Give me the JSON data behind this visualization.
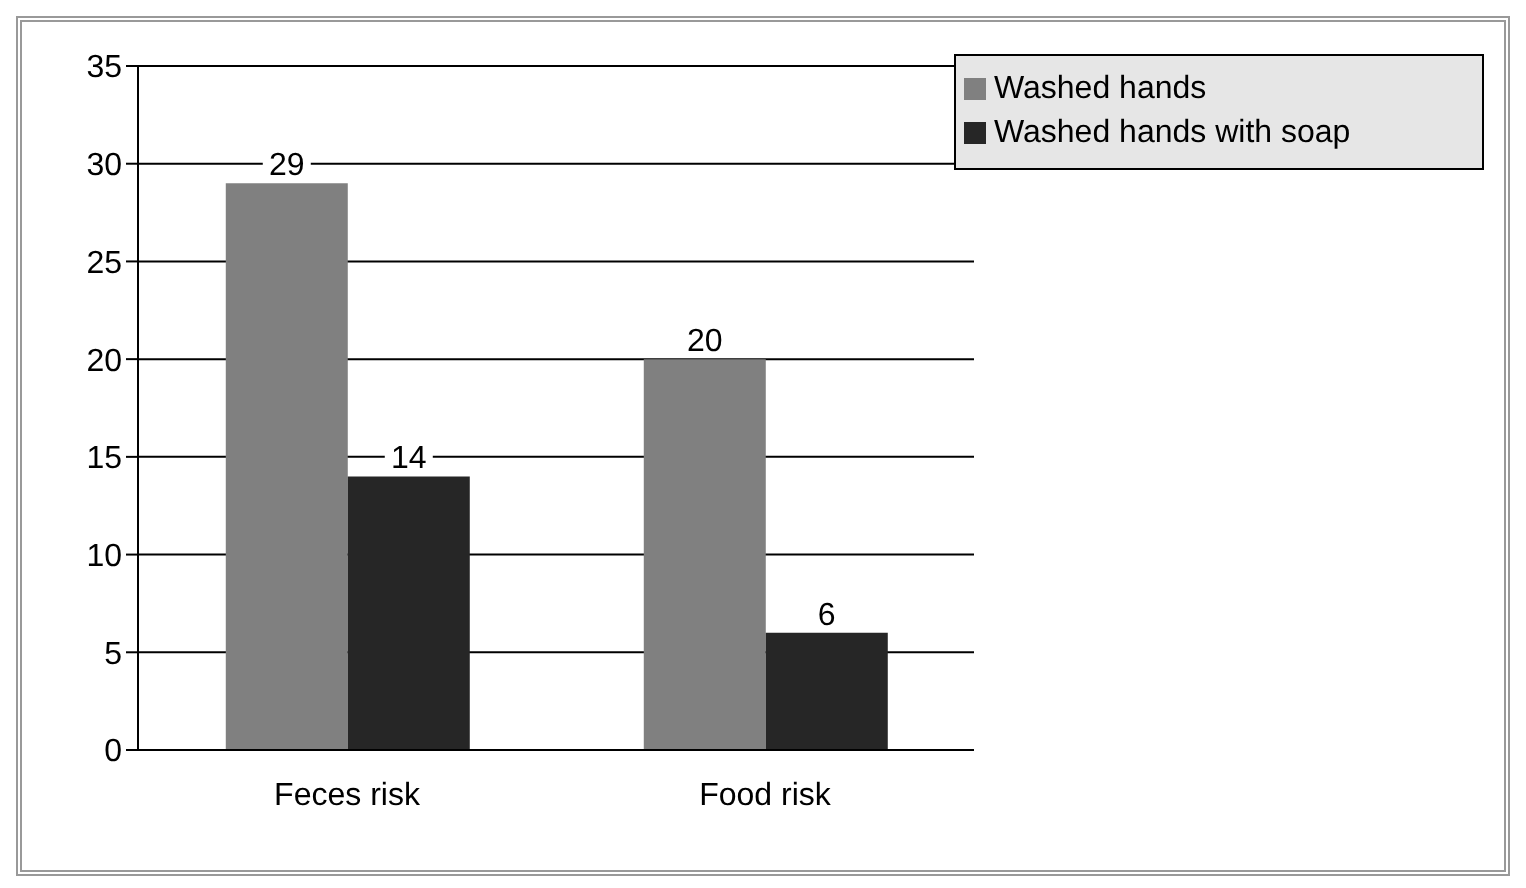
{
  "chart_data": {
    "type": "bar",
    "categories": [
      "Feces risk",
      "Food risk"
    ],
    "series": [
      {
        "name": "Washed hands",
        "color": "#808080",
        "values": [
          29,
          20
        ]
      },
      {
        "name": "Washed hands with soap",
        "color": "#262626",
        "values": [
          14,
          6
        ]
      }
    ],
    "ylim": [
      0,
      35
    ],
    "yticks": [
      0,
      5,
      10,
      15,
      20,
      25,
      30,
      35
    ],
    "grid": "y",
    "legend": "top right",
    "data_labels": true
  }
}
